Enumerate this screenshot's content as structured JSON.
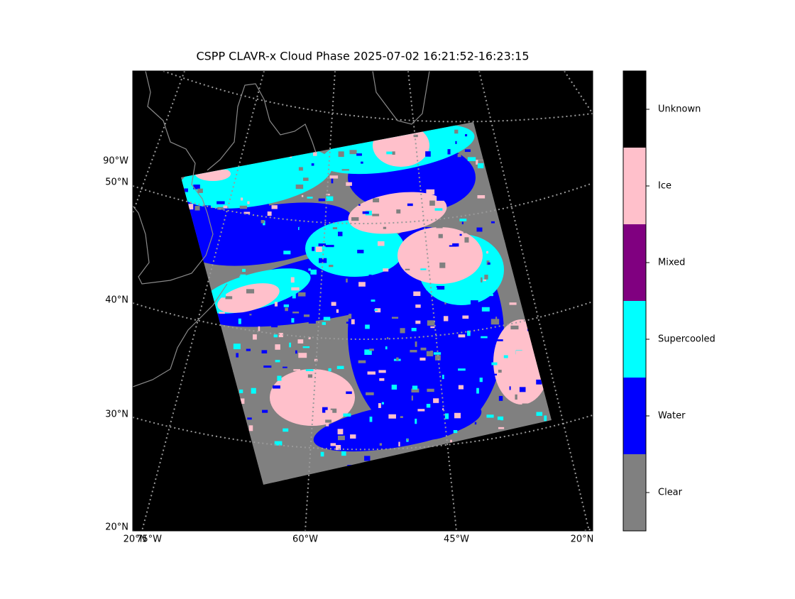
{
  "title": "CSPP CLAVR-x Cloud Phase 2025-07-02 16:21:52-16:23:15",
  "map": {
    "left_labels": [
      "90°W",
      "50°N",
      "40°N",
      "30°N",
      "20°N"
    ],
    "bottom_labels": [
      "20°N",
      "75°W",
      "60°W",
      "45°W",
      "20°N"
    ]
  },
  "colorbar": {
    "categories": [
      {
        "label": "Unknown",
        "color": "#000000"
      },
      {
        "label": "Ice",
        "color": "#ffc0cb"
      },
      {
        "label": "Mixed",
        "color": "#800080"
      },
      {
        "label": "Supercooled",
        "color": "#00ffff"
      },
      {
        "label": "Water",
        "color": "#0000ff"
      },
      {
        "label": "Clear",
        "color": "#808080"
      }
    ]
  }
}
